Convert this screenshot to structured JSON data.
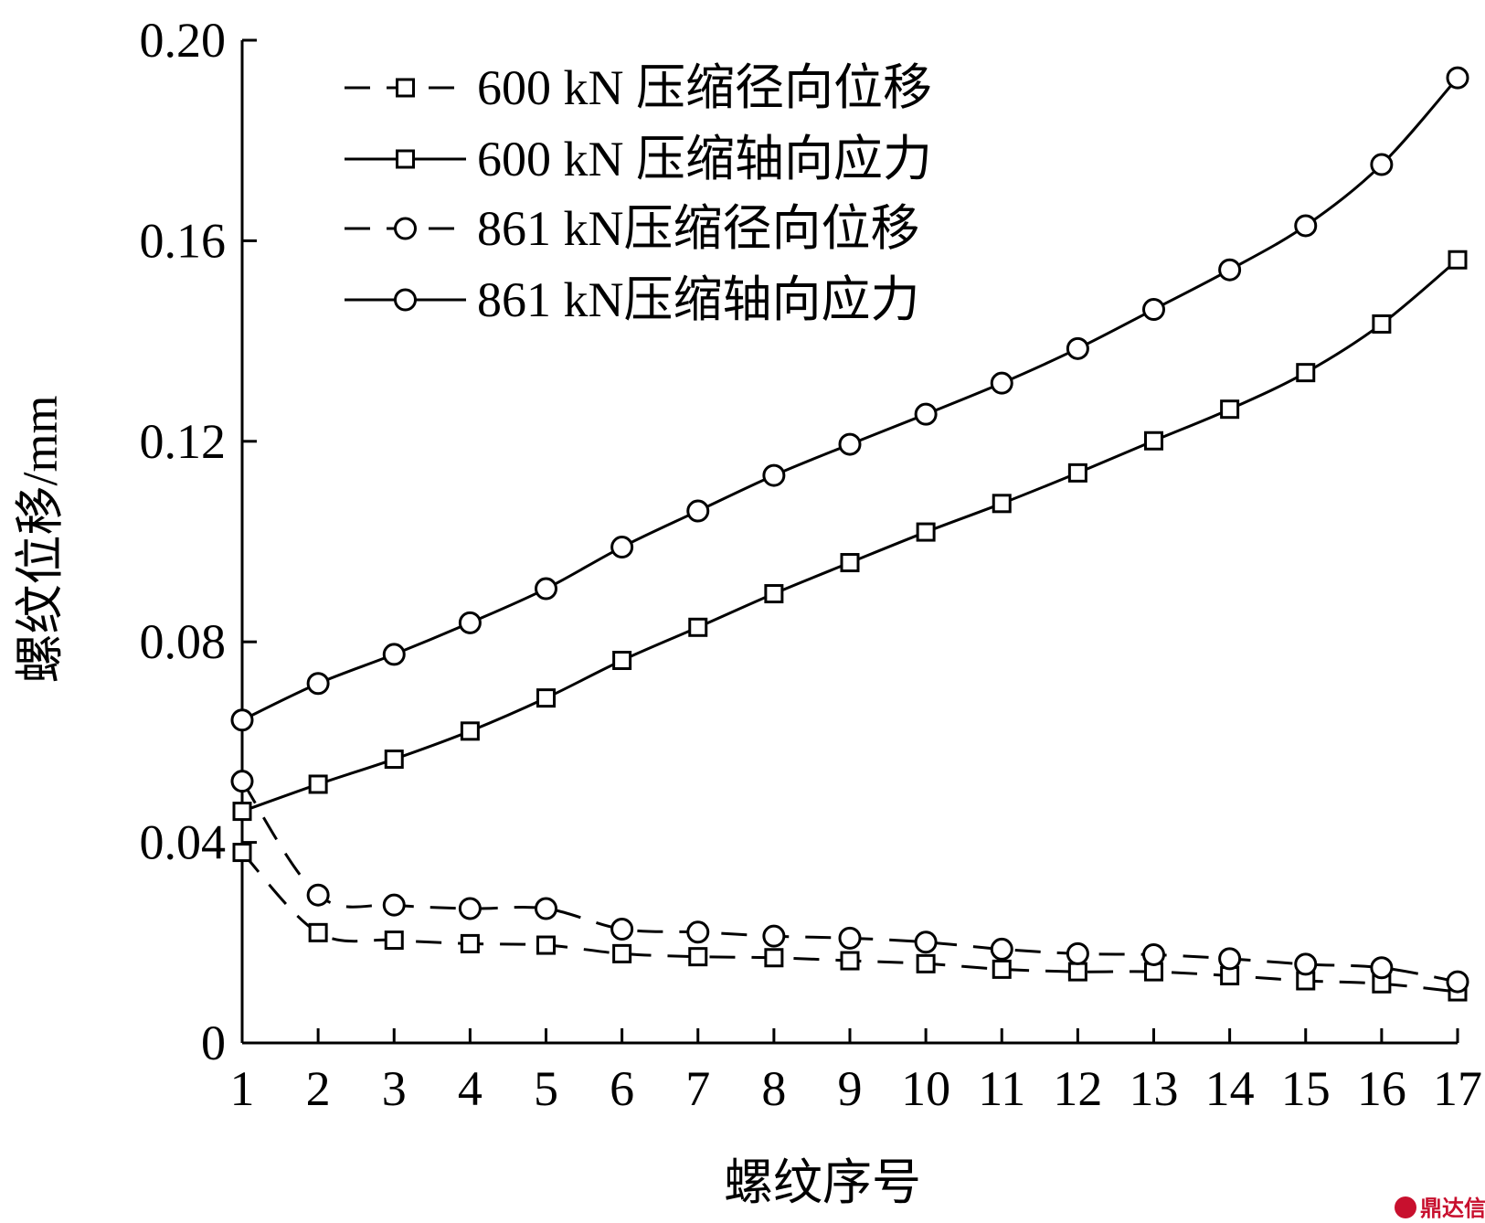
{
  "chart_data": {
    "type": "line",
    "title": "",
    "xlabel": "螺纹序号",
    "ylabel": "螺纹位移/mm",
    "x": [
      1,
      2,
      3,
      4,
      5,
      6,
      7,
      8,
      9,
      10,
      11,
      12,
      13,
      14,
      15,
      16,
      17
    ],
    "xlim": [
      1,
      17
    ],
    "ylim": [
      0,
      0.2
    ],
    "y_ticks": [
      "0",
      "0.04",
      "0.08",
      "0.12",
      "0.16",
      "0.20"
    ],
    "x_ticks": [
      "1",
      "2",
      "3",
      "4",
      "5",
      "6",
      "7",
      "8",
      "9",
      "10",
      "11",
      "12",
      "13",
      "14",
      "15",
      "16",
      "17"
    ],
    "grid": false,
    "legend_position": "top-left",
    "series": [
      {
        "name": "600 kN 压缩径向位移",
        "marker": "square",
        "line": "dashed",
        "values": [
          0.038,
          0.022,
          0.0205,
          0.0198,
          0.0195,
          0.0178,
          0.0172,
          0.017,
          0.0164,
          0.0158,
          0.0147,
          0.0142,
          0.0142,
          0.0134,
          0.0124,
          0.0118,
          0.0102
        ]
      },
      {
        "name": "600 kN 压缩轴向应力",
        "marker": "square",
        "line": "solid",
        "values": [
          0.0462,
          0.0516,
          0.0566,
          0.0622,
          0.0688,
          0.0763,
          0.0829,
          0.0896,
          0.0958,
          0.1019,
          0.1076,
          0.1137,
          0.1201,
          0.1264,
          0.1337,
          0.1434,
          0.1562
        ]
      },
      {
        "name": "861 kN压缩径向位移",
        "marker": "circle",
        "line": "dashed",
        "values": [
          0.0522,
          0.0295,
          0.0275,
          0.0268,
          0.0268,
          0.0227,
          0.0221,
          0.0213,
          0.0209,
          0.0201,
          0.0187,
          0.0178,
          0.0176,
          0.0168,
          0.0157,
          0.015,
          0.0122
        ]
      },
      {
        "name": "861 kN压缩轴向应力",
        "marker": "circle",
        "line": "solid",
        "values": [
          0.0644,
          0.0717,
          0.0775,
          0.0838,
          0.0906,
          0.0989,
          0.1061,
          0.1132,
          0.1194,
          0.1254,
          0.1316,
          0.1385,
          0.1463,
          0.1542,
          0.163,
          0.1752,
          0.1925
        ]
      }
    ]
  },
  "watermark": {
    "text": "鼎达信",
    "color": "#c8102e"
  }
}
